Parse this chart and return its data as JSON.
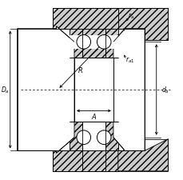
{
  "bg_color": "#ffffff",
  "fig_width": 2.3,
  "fig_height": 2.26,
  "dpi": 100,
  "hatch_color": "#000000",
  "hatch_fill": "#cccccc",
  "white": "#ffffff",
  "light_gray": "#e8e8e8"
}
